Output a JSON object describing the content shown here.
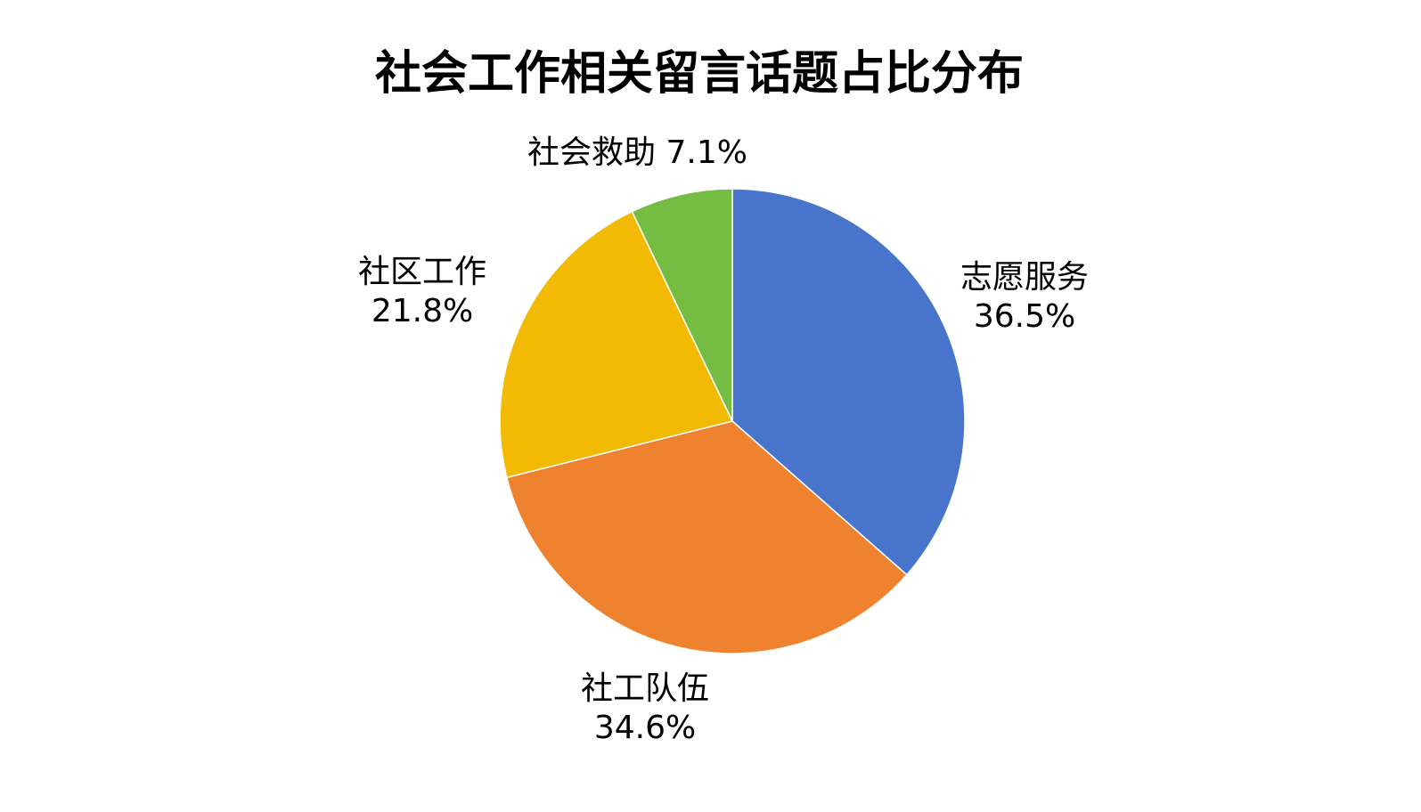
{
  "chart_data": {
    "type": "pie",
    "title": "社会工作相关留言话题占比分布",
    "start": "top",
    "direction": "clockwise",
    "categories": [
      "志愿服务",
      "社工队伍",
      "社区工作",
      "社会救助"
    ],
    "values": [
      36.5,
      34.6,
      21.8,
      7.1
    ],
    "labels": [
      "36.5%",
      "34.6%",
      "21.8%",
      "7.1%"
    ],
    "colors": [
      "#4874CB",
      "#EE822F",
      "#F2BA02",
      "#75BD42"
    ],
    "legend": "none"
  }
}
